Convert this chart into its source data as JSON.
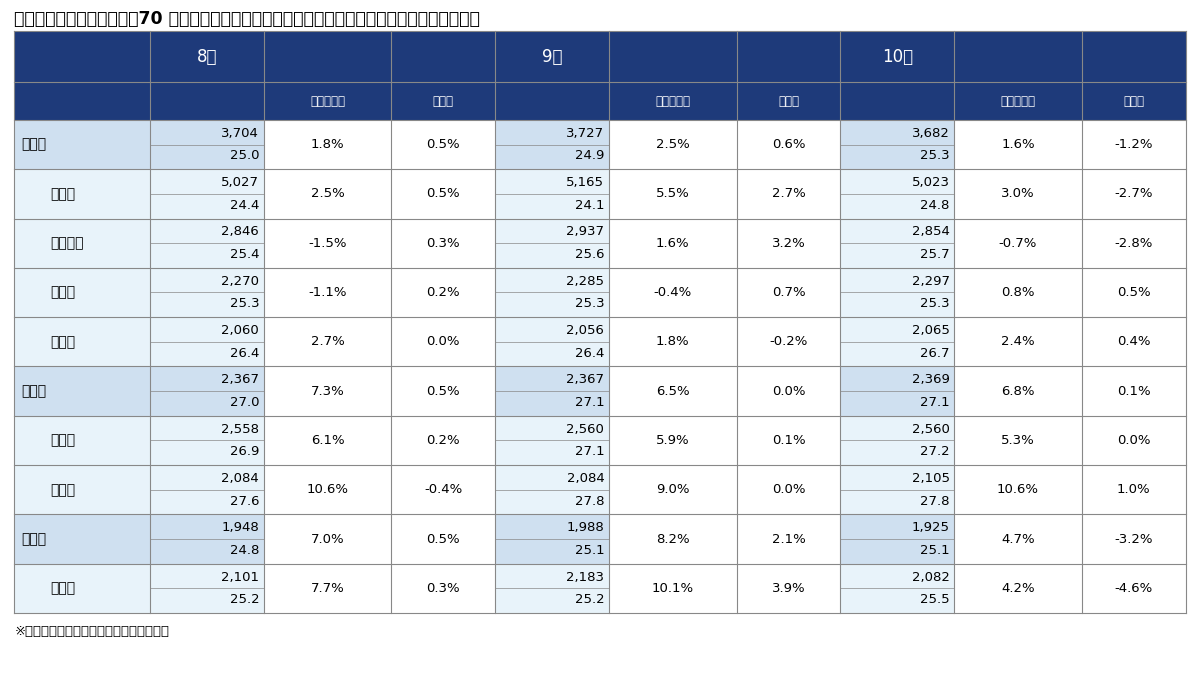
{
  "title": "三大都市圏および都府県　70 ㎡あたりの中古マンション価格　（図中の数値は１・７月の価格）",
  "footnote": "※上段は価格（単位：万円）、下段は築年",
  "header_bg": "#1e3a7a",
  "row_bg_main": "#cfe0f0",
  "row_bg_sub": "#e8f3fa",
  "row_bg_white": "#ffffff",
  "border_color": "#888888",
  "header_text_color": "#ffffff",
  "cell_text_color": "#000000",
  "months": [
    "8月",
    "9月",
    "10月"
  ],
  "col_labels": [
    "前年同月比",
    "前月比"
  ],
  "rows": [
    {
      "label": "首都圏",
      "indent": 0,
      "is_main": true,
      "data": [
        {
          "price": "3,704",
          "age": "25.0",
          "yoy": "1.8%",
          "mom": "0.5%"
        },
        {
          "price": "3,727",
          "age": "24.9",
          "yoy": "2.5%",
          "mom": "0.6%"
        },
        {
          "price": "3,682",
          "age": "25.3",
          "yoy": "1.6%",
          "mom": "-1.2%"
        }
      ]
    },
    {
      "label": "東京都",
      "indent": 1,
      "is_main": false,
      "data": [
        {
          "price": "5,027",
          "age": "24.4",
          "yoy": "2.5%",
          "mom": "0.5%"
        },
        {
          "price": "5,165",
          "age": "24.1",
          "yoy": "5.5%",
          "mom": "2.7%"
        },
        {
          "price": "5,023",
          "age": "24.8",
          "yoy": "3.0%",
          "mom": "-2.7%"
        }
      ]
    },
    {
      "label": "神奈川県",
      "indent": 1,
      "is_main": false,
      "data": [
        {
          "price": "2,846",
          "age": "25.4",
          "yoy": "-1.5%",
          "mom": "0.3%"
        },
        {
          "price": "2,937",
          "age": "25.6",
          "yoy": "1.6%",
          "mom": "3.2%"
        },
        {
          "price": "2,854",
          "age": "25.7",
          "yoy": "-0.7%",
          "mom": "-2.8%"
        }
      ]
    },
    {
      "label": "埼玉県",
      "indent": 1,
      "is_main": false,
      "data": [
        {
          "price": "2,270",
          "age": "25.3",
          "yoy": "-1.1%",
          "mom": "0.2%"
        },
        {
          "price": "2,285",
          "age": "25.3",
          "yoy": "-0.4%",
          "mom": "0.7%"
        },
        {
          "price": "2,297",
          "age": "25.3",
          "yoy": "0.8%",
          "mom": "0.5%"
        }
      ]
    },
    {
      "label": "千葉県",
      "indent": 1,
      "is_main": false,
      "data": [
        {
          "price": "2,060",
          "age": "26.4",
          "yoy": "2.7%",
          "mom": "0.0%"
        },
        {
          "price": "2,056",
          "age": "26.4",
          "yoy": "1.8%",
          "mom": "-0.2%"
        },
        {
          "price": "2,065",
          "age": "26.7",
          "yoy": "2.4%",
          "mom": "0.4%"
        }
      ]
    },
    {
      "label": "近畿圏",
      "indent": 0,
      "is_main": true,
      "data": [
        {
          "price": "2,367",
          "age": "27.0",
          "yoy": "7.3%",
          "mom": "0.5%"
        },
        {
          "price": "2,367",
          "age": "27.1",
          "yoy": "6.5%",
          "mom": "0.0%"
        },
        {
          "price": "2,369",
          "age": "27.1",
          "yoy": "6.8%",
          "mom": "0.1%"
        }
      ]
    },
    {
      "label": "大阪府",
      "indent": 1,
      "is_main": false,
      "data": [
        {
          "price": "2,558",
          "age": "26.9",
          "yoy": "6.1%",
          "mom": "0.2%"
        },
        {
          "price": "2,560",
          "age": "27.1",
          "yoy": "5.9%",
          "mom": "0.1%"
        },
        {
          "price": "2,560",
          "age": "27.2",
          "yoy": "5.3%",
          "mom": "0.0%"
        }
      ]
    },
    {
      "label": "兵庫県",
      "indent": 1,
      "is_main": false,
      "data": [
        {
          "price": "2,084",
          "age": "27.6",
          "yoy": "10.6%",
          "mom": "-0.4%"
        },
        {
          "price": "2,084",
          "age": "27.8",
          "yoy": "9.0%",
          "mom": "0.0%"
        },
        {
          "price": "2,105",
          "age": "27.8",
          "yoy": "10.6%",
          "mom": "1.0%"
        }
      ]
    },
    {
      "label": "中部圏",
      "indent": 0,
      "is_main": true,
      "data": [
        {
          "price": "1,948",
          "age": "24.8",
          "yoy": "7.0%",
          "mom": "0.5%"
        },
        {
          "price": "1,988",
          "age": "25.1",
          "yoy": "8.2%",
          "mom": "2.1%"
        },
        {
          "price": "1,925",
          "age": "25.1",
          "yoy": "4.7%",
          "mom": "-3.2%"
        }
      ]
    },
    {
      "label": "愛知県",
      "indent": 1,
      "is_main": false,
      "data": [
        {
          "price": "2,101",
          "age": "25.2",
          "yoy": "7.7%",
          "mom": "0.3%"
        },
        {
          "price": "2,183",
          "age": "25.2",
          "yoy": "10.1%",
          "mom": "3.9%"
        },
        {
          "price": "2,082",
          "age": "25.5",
          "yoy": "4.2%",
          "mom": "-4.6%"
        }
      ]
    }
  ]
}
